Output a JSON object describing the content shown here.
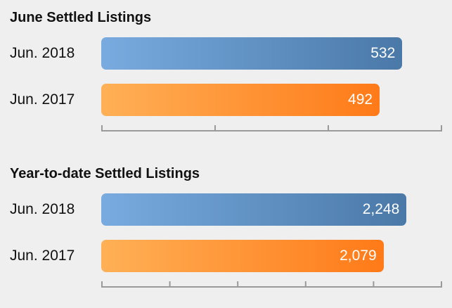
{
  "chart_data": [
    {
      "type": "bar",
      "orientation": "horizontal",
      "title": "June Settled Listings",
      "categories": [
        "Jun. 2018",
        "Jun. 2017"
      ],
      "values": [
        532,
        492
      ],
      "value_labels": [
        "532",
        "492"
      ],
      "xlim": [
        0,
        600
      ],
      "axis_ticks": 4,
      "colors": [
        "#4a79a8",
        "#ff7a18"
      ]
    },
    {
      "type": "bar",
      "orientation": "horizontal",
      "title": "Year-to-date Settled Listings",
      "categories": [
        "Jun. 2018",
        "Jun. 2017"
      ],
      "values": [
        2248,
        2079
      ],
      "value_labels": [
        "2,248",
        "2,079"
      ],
      "xlim": [
        0,
        2500
      ],
      "axis_ticks": 6,
      "colors": [
        "#4a79a8",
        "#ff7a18"
      ]
    }
  ]
}
